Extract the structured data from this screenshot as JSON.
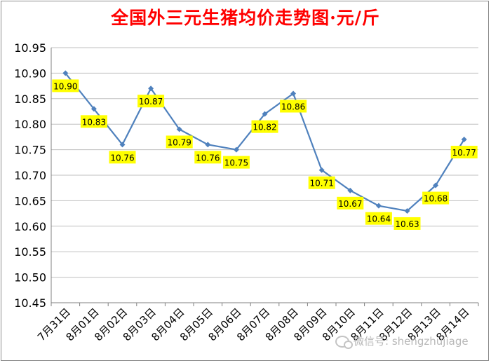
{
  "chart_data": {
    "type": "line",
    "title": "全国外三元生猪均价走势图·元/斤",
    "xlabel": "",
    "ylabel": "",
    "categories": [
      "7月31日",
      "8月01日",
      "8月02日",
      "8月03日",
      "8月04日",
      "8月05日",
      "8月06日",
      "8月07日",
      "8月08日",
      "8月09日",
      "8月10日",
      "8月11日",
      "8月12日",
      "8月13日",
      "8月14日"
    ],
    "values": [
      10.9,
      10.83,
      10.76,
      10.87,
      10.79,
      10.76,
      10.75,
      10.82,
      10.86,
      10.71,
      10.67,
      10.64,
      10.63,
      10.68,
      10.77
    ],
    "data_labels": [
      "10.90",
      "10.83",
      "10.76",
      "10.87",
      "10.79",
      "10.76",
      "10.75",
      "10.82",
      "10.86",
      "10.71",
      "10.67",
      "10.64",
      "10.63",
      "10.68",
      "10.77"
    ],
    "yticks": [
      "10.45",
      "10.50",
      "10.55",
      "10.60",
      "10.65",
      "10.70",
      "10.75",
      "10.80",
      "10.85",
      "10.90",
      "10.95"
    ],
    "ylim": [
      10.45,
      10.95
    ],
    "grid": true,
    "legend": "none",
    "colors": {
      "line": "#4f81bd",
      "label_bg": "#ffff00",
      "grid": "#bfbfbf",
      "title": "#ff0000"
    }
  },
  "watermark": "微信号: shengzhujiage"
}
